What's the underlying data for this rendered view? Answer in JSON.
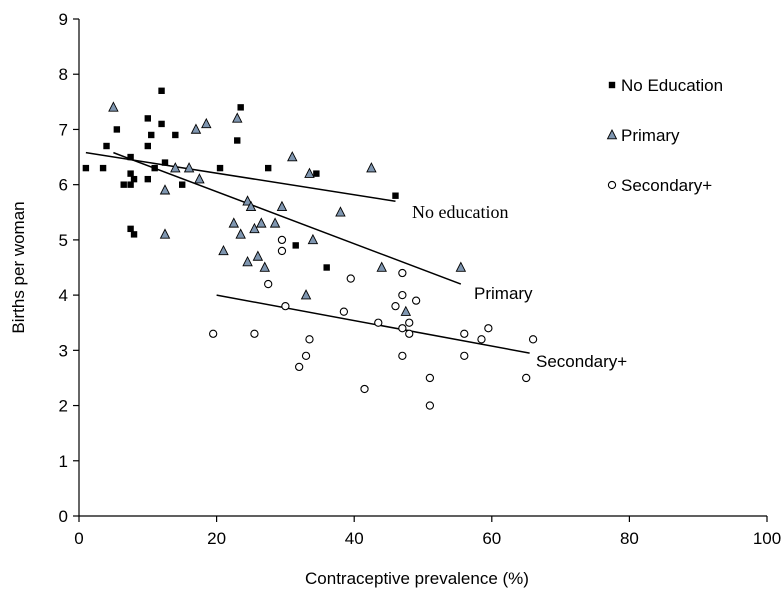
{
  "chart_data": {
    "type": "scatter",
    "title": "",
    "xlabel": "Contraceptive prevalence (%)",
    "ylabel": "Births per woman",
    "xlim": [
      0,
      100
    ],
    "ylim": [
      0,
      9
    ],
    "x_ticks": [
      0,
      20,
      40,
      60,
      80,
      100
    ],
    "y_ticks": [
      0,
      1,
      2,
      3,
      4,
      5,
      6,
      7,
      8,
      9
    ],
    "grid": false,
    "legend_position": "top-right",
    "series": [
      {
        "name": "No Education",
        "marker": "square",
        "color": "#000000",
        "points": [
          [
            1,
            6.3
          ],
          [
            3.5,
            6.3
          ],
          [
            4,
            6.7
          ],
          [
            5.5,
            7.0
          ],
          [
            6.5,
            6.0
          ],
          [
            7.5,
            6.0
          ],
          [
            7.5,
            6.5
          ],
          [
            7.5,
            6.2
          ],
          [
            8,
            6.1
          ],
          [
            7.5,
            5.2
          ],
          [
            8,
            5.1
          ],
          [
            10,
            7.2
          ],
          [
            10,
            6.7
          ],
          [
            10,
            6.1
          ],
          [
            10.5,
            6.9
          ],
          [
            11,
            6.3
          ],
          [
            12,
            7.7
          ],
          [
            12,
            7.1
          ],
          [
            12.5,
            6.4
          ],
          [
            14,
            6.9
          ],
          [
            15,
            6.0
          ],
          [
            20.5,
            6.3
          ],
          [
            23.5,
            7.4
          ],
          [
            23,
            6.8
          ],
          [
            27.5,
            6.3
          ],
          [
            31.5,
            4.9
          ],
          [
            34.5,
            6.2
          ],
          [
            36,
            4.5
          ],
          [
            46,
            5.8
          ]
        ]
      },
      {
        "name": "Primary",
        "marker": "triangle",
        "color": "#7f96b0",
        "points": [
          [
            5,
            7.4
          ],
          [
            12.5,
            5.9
          ],
          [
            12.5,
            5.1
          ],
          [
            14,
            6.3
          ],
          [
            16,
            6.3
          ],
          [
            17,
            7.0
          ],
          [
            17.5,
            6.1
          ],
          [
            18.5,
            7.1
          ],
          [
            21,
            4.8
          ],
          [
            22.5,
            5.3
          ],
          [
            23,
            7.2
          ],
          [
            23.5,
            5.1
          ],
          [
            24.5,
            4.6
          ],
          [
            24.5,
            5.7
          ],
          [
            25,
            5.6
          ],
          [
            25.5,
            5.2
          ],
          [
            26,
            4.7
          ],
          [
            26.5,
            5.3
          ],
          [
            27,
            4.5
          ],
          [
            28.5,
            5.3
          ],
          [
            29.5,
            5.6
          ],
          [
            31,
            6.5
          ],
          [
            33,
            4.0
          ],
          [
            33.5,
            6.2
          ],
          [
            34,
            5.0
          ],
          [
            38,
            5.5
          ],
          [
            42.5,
            6.3
          ],
          [
            44,
            4.5
          ],
          [
            47.5,
            3.7
          ],
          [
            55.5,
            4.5
          ]
        ]
      },
      {
        "name": "Secondary+",
        "marker": "circle",
        "color": "#000000",
        "points": [
          [
            19.5,
            3.3
          ],
          [
            25.5,
            3.3
          ],
          [
            27.5,
            4.2
          ],
          [
            29.5,
            5.0
          ],
          [
            29.5,
            4.8
          ],
          [
            30,
            3.8
          ],
          [
            32,
            2.7
          ],
          [
            33,
            2.9
          ],
          [
            33.5,
            3.2
          ],
          [
            38.5,
            3.7
          ],
          [
            39.5,
            4.3
          ],
          [
            41.5,
            2.3
          ],
          [
            43.5,
            3.5
          ],
          [
            46,
            3.8
          ],
          [
            47,
            4.4
          ],
          [
            47,
            4.0
          ],
          [
            47,
            3.4
          ],
          [
            47,
            2.9
          ],
          [
            48,
            3.5
          ],
          [
            48,
            3.3
          ],
          [
            49,
            3.9
          ],
          [
            51,
            2.5
          ],
          [
            51,
            2.0
          ],
          [
            56,
            3.3
          ],
          [
            56,
            2.9
          ],
          [
            58.5,
            3.2
          ],
          [
            59.5,
            3.4
          ],
          [
            65,
            2.5
          ],
          [
            66,
            3.2
          ]
        ]
      }
    ],
    "trendlines": [
      {
        "label": "No education",
        "from": [
          1,
          6.58
        ],
        "to": [
          46,
          5.7
        ]
      },
      {
        "label": "Primary",
        "from": [
          5,
          6.58
        ],
        "to": [
          55.5,
          4.2
        ]
      },
      {
        "label": "Secondary+",
        "from": [
          20,
          4.0
        ],
        "to": [
          65.5,
          2.95
        ]
      }
    ]
  }
}
